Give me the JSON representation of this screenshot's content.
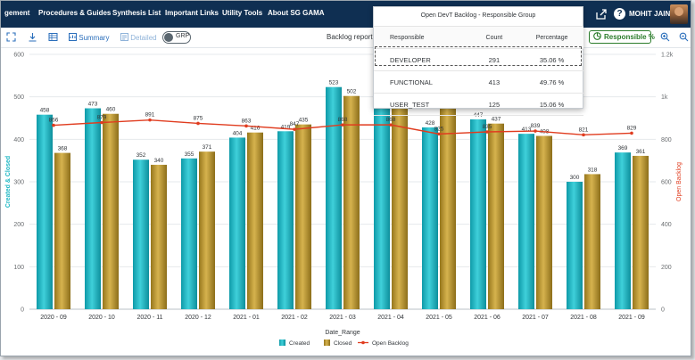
{
  "nav": {
    "items": [
      "gement",
      "Procedures & Guides",
      "Synthesis List",
      "Important Links",
      "Utility Tools",
      "About SG GAMA"
    ],
    "user_name": "MOHIT JAIN",
    "help_symbol": "?",
    "share_icon": "share-icon"
  },
  "toolbar": {
    "summary_label": "Summary",
    "detailed_label": "Detailed",
    "toggle_label": "GRP",
    "report_label": "Backlog report",
    "responsible_label": "Responsible %",
    "icons": [
      "expand-icon",
      "download-icon",
      "table-icon",
      "zoom-in-icon",
      "zoom-out-icon"
    ]
  },
  "popover": {
    "title": "Open DevT Backlog - Responsible Group",
    "headers": {
      "responsible": "Responsible",
      "count": "Count",
      "percentage": "Percentage"
    },
    "rows": [
      {
        "responsible": "DEVELOPER",
        "count": "291",
        "percentage": "35.06 %"
      },
      {
        "responsible": "FUNCTIONAL",
        "count": "413",
        "percentage": "49.76 %"
      },
      {
        "responsible": "USER_TEST",
        "count": "125",
        "percentage": "15.06 %"
      }
    ],
    "selected_row": 0
  },
  "chart_data": {
    "type": "bar",
    "categories": [
      "2020 - 09",
      "2020 - 10",
      "2020 - 11",
      "2020 - 12",
      "2021 - 01",
      "2021 - 02",
      "2021 - 03",
      "2021 - 04",
      "2021 - 05",
      "2021 - 06",
      "2021 - 07",
      "2021 - 08",
      "2021 - 09"
    ],
    "series": [
      {
        "name": "Created",
        "type": "bar",
        "axis": "left",
        "color": "#1eb7c4",
        "values": [
          458,
          473,
          352,
          355,
          404,
          419,
          523,
          480,
          428,
          447,
          413,
          300,
          369
        ],
        "labels": [
          "458",
          "473",
          "352",
          "355",
          "404",
          "419",
          "523",
          "",
          "428",
          "447",
          "413",
          "300",
          "369"
        ]
      },
      {
        "name": "Closed",
        "type": "bar",
        "axis": "left",
        "color": "#b8962e",
        "values": [
          368,
          460,
          340,
          371,
          416,
          435,
          502,
          480,
          510,
          437,
          408,
          318,
          361
        ],
        "labels": [
          "368",
          "460",
          "340",
          "371",
          "416",
          "435",
          "502",
          "",
          "",
          "437",
          "408",
          "318",
          "361"
        ]
      },
      {
        "name": "Open Backlog",
        "type": "line",
        "axis": "right",
        "color": "#e03c1f",
        "values": [
          866,
          879,
          891,
          875,
          863,
          847,
          868,
          868,
          825,
          835,
          839,
          821,
          829
        ],
        "labels": [
          "866",
          "879",
          "891",
          "875",
          "863",
          "847",
          "868",
          "868",
          "825",
          "835",
          "839",
          "821",
          "829"
        ]
      }
    ],
    "xlabel": "Date_Range",
    "ylabel": "Created & Closed",
    "y2label": "Open Backlog",
    "ylim": [
      0,
      600
    ],
    "y2lim": [
      0,
      1200
    ],
    "yticks": [
      0,
      100,
      200,
      300,
      400,
      500,
      600
    ],
    "y2ticks": [
      "0",
      "200",
      "400",
      "600",
      "800",
      "1k",
      "1.2k"
    ],
    "grid": true,
    "legend_position": "bottom"
  }
}
